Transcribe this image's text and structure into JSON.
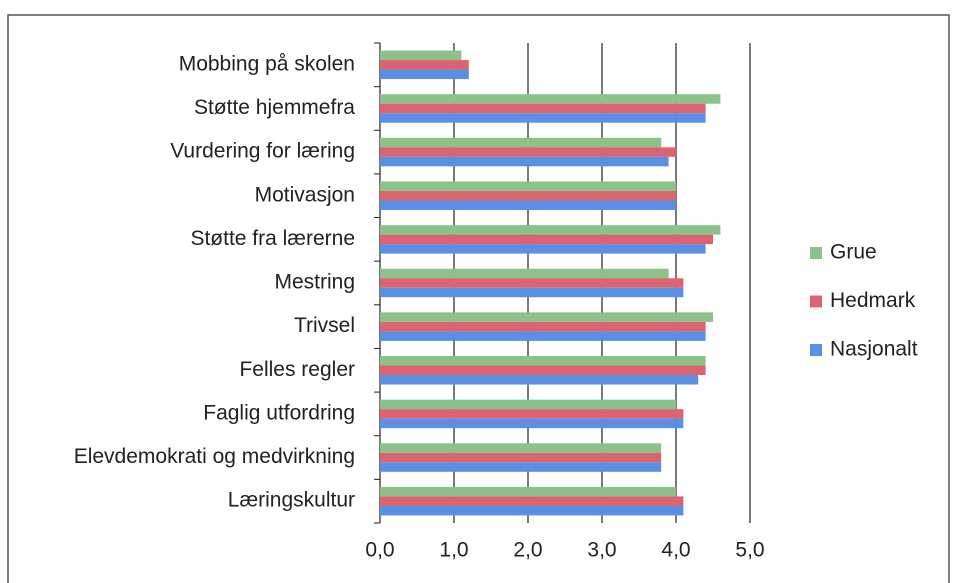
{
  "chart_data": {
    "type": "hbar",
    "categories": [
      "Mobbing på skolen",
      "Støtte hjemmefra",
      "Vurdering for læring",
      "Motivasjon",
      "Støtte fra lærerne",
      "Mestring",
      "Trivsel",
      "Felles regler",
      "Faglig utfordring",
      "Elevdemokrati og medvirkning",
      "Læringskultur"
    ],
    "series": [
      {
        "name": "Grue",
        "color": "#8cc18a",
        "values": [
          1.1,
          4.6,
          3.8,
          4.0,
          4.6,
          3.9,
          4.5,
          4.4,
          4.0,
          3.8,
          4.0
        ]
      },
      {
        "name": "Hedmark",
        "color": "#dc6470",
        "values": [
          1.2,
          4.4,
          4.0,
          4.0,
          4.5,
          4.1,
          4.4,
          4.4,
          4.1,
          3.8,
          4.1
        ]
      },
      {
        "name": "Nasjonalt",
        "color": "#5b8fe3",
        "values": [
          1.2,
          4.4,
          3.9,
          4.0,
          4.4,
          4.1,
          4.4,
          4.3,
          4.1,
          3.8,
          4.1
        ]
      }
    ],
    "xlim": [
      0,
      5
    ],
    "xticks": [
      {
        "value": 0,
        "label": "0,0"
      },
      {
        "value": 1,
        "label": "1,0"
      },
      {
        "value": 2,
        "label": "2,0"
      },
      {
        "value": 3,
        "label": "3,0"
      },
      {
        "value": 4,
        "label": "4,0"
      },
      {
        "value": 5,
        "label": "5,0"
      }
    ],
    "grid": true,
    "legend": "right"
  }
}
